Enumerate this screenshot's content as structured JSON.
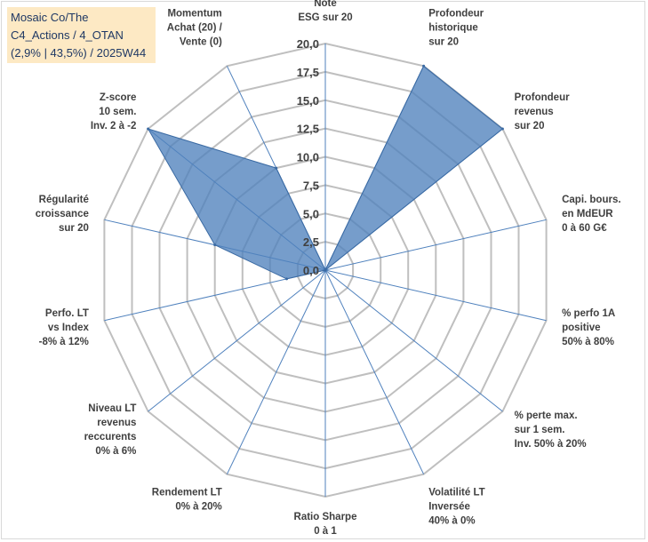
{
  "title": {
    "lines": [
      "Mosaic Co/The",
      "C4_Actions / 4_OTAN",
      "(2,9% | 43,5%) / 2025W44"
    ]
  },
  "chart_data": {
    "type": "radar",
    "title": "Mosaic Co/The C4_Actions / 4_OTAN (2,9% | 43,5%) / 2025W44",
    "rmin": 0,
    "rmax": 20,
    "ticks": [
      "0,0",
      "2,5",
      "5,0",
      "7,5",
      "10,0",
      "12,5",
      "15,0",
      "17,5",
      "20,0"
    ],
    "axes": [
      {
        "lines": [
          "Note",
          "ESG sur 20"
        ],
        "value": 0
      },
      {
        "lines": [
          "Profondeur",
          "historique",
          "sur 20"
        ],
        "value": 20
      },
      {
        "lines": [
          "Profondeur",
          "revenus",
          "sur 20"
        ],
        "value": 20
      },
      {
        "lines": [
          "Capi. bours.",
          "en MdEUR",
          "0 à 60 G€"
        ],
        "value": 0
      },
      {
        "lines": [
          "% perfo 1A",
          "positive",
          "50% à 80%"
        ],
        "value": 0
      },
      {
        "lines": [
          "% perte max.",
          "sur 1 sem.",
          "Inv. 50% à 20%"
        ],
        "value": 0
      },
      {
        "lines": [
          "Volatilité LT",
          "Inversée",
          "40% à 0%"
        ],
        "value": 0
      },
      {
        "lines": [
          "Ratio Sharpe",
          "0 à 1"
        ],
        "value": 0
      },
      {
        "lines": [
          "Rendement LT",
          "0% à 20%"
        ],
        "value": 0
      },
      {
        "lines": [
          "Niveau LT",
          "revenus",
          "reccurents",
          "0% à 6%"
        ],
        "value": 0
      },
      {
        "lines": [
          "Perfo. LT",
          "vs Index",
          "-8% à 12%"
        ],
        "value": 3.5
      },
      {
        "lines": [
          "Régularité",
          "croissance",
          "sur 20"
        ],
        "value": 10
      },
      {
        "lines": [
          "Z-score",
          "10 sem.",
          "Inv. 2 à -2"
        ],
        "value": 20
      },
      {
        "lines": [
          "Momentum",
          "Achat (20) /",
          "Vente (0)"
        ],
        "value": 10
      }
    ],
    "series": [
      {
        "name": "Mosaic Co/The",
        "color": "#4f81bd"
      }
    ]
  }
}
